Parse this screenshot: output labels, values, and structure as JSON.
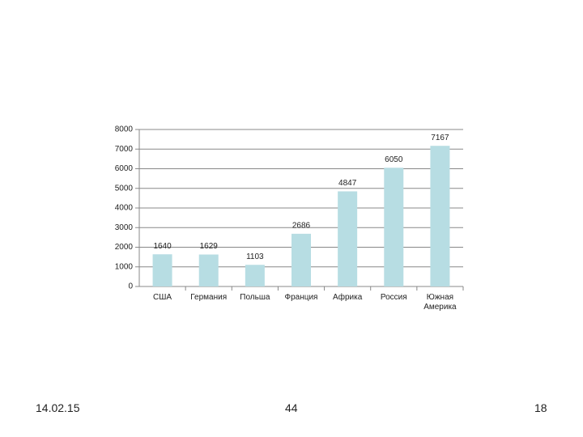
{
  "chart_data": {
    "type": "bar",
    "categories": [
      "США",
      "Германия",
      "Польша",
      "Франция",
      "Африка",
      "Россия",
      "Южная Америка"
    ],
    "values": [
      1640,
      1629,
      1103,
      2686,
      4847,
      6050,
      7167
    ],
    "color": "#b7dde3",
    "ylim": [
      0,
      8000
    ],
    "yticks": [
      0,
      1000,
      2000,
      3000,
      4000,
      5000,
      6000,
      7000,
      8000
    ],
    "grid": true
  },
  "footer": {
    "date": "14.02.15",
    "center": "44",
    "page": "18"
  }
}
